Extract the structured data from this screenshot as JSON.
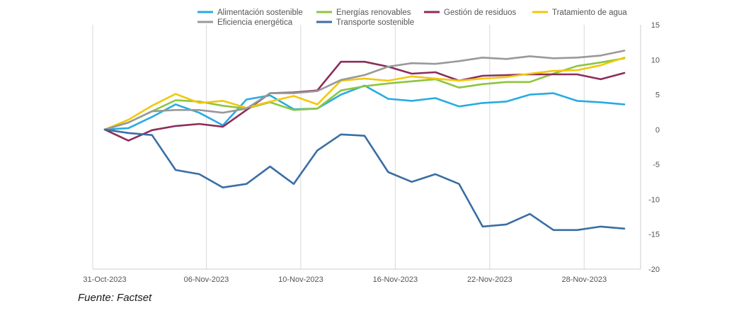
{
  "chart_data": {
    "type": "line",
    "title": "",
    "xlabel": "",
    "ylabel": "",
    "ylim": [
      -20,
      15
    ],
    "yticks": [
      15,
      10,
      5,
      0,
      -5,
      -10,
      -15,
      -20
    ],
    "x_tick_labels": [
      "31-Oct-2023",
      "06-Nov-2023",
      "10-Nov-2023",
      "16-Nov-2023",
      "22-Nov-2023",
      "28-Nov-2023"
    ],
    "x_tick_index": [
      0,
      4,
      8,
      12,
      16,
      20
    ],
    "point_count": 23,
    "legend_position": "top",
    "grid": "vertical",
    "series": [
      {
        "name": "Alimentación sostenible",
        "color": "#29abe2",
        "values": [
          0.0,
          0.2,
          1.8,
          3.6,
          2.4,
          0.6,
          4.3,
          4.9,
          2.9,
          3.0,
          5.0,
          6.3,
          4.4,
          4.1,
          4.5,
          3.3,
          3.8,
          4.0,
          5.0,
          5.2,
          4.1,
          3.9,
          3.6
        ]
      },
      {
        "name": "Energías renovables",
        "color": "#8cc63f",
        "values": [
          0.0,
          1.0,
          2.6,
          4.2,
          4.0,
          3.4,
          3.0,
          3.9,
          2.8,
          3.0,
          5.6,
          6.2,
          6.6,
          6.9,
          7.2,
          6.0,
          6.5,
          6.8,
          6.8,
          8.0,
          9.1,
          9.6,
          10.2
        ]
      },
      {
        "name": "Gestión de residuos",
        "color": "#8b2e5a",
        "values": [
          0.0,
          -1.6,
          -0.1,
          0.5,
          0.8,
          0.4,
          2.8,
          5.2,
          5.3,
          5.6,
          9.7,
          9.7,
          9.0,
          8.0,
          8.2,
          7.0,
          7.7,
          7.8,
          7.9,
          7.9,
          7.9,
          7.2,
          8.1
        ]
      },
      {
        "name": "Tratamiento de agua",
        "color": "#f2c80f",
        "values": [
          0.0,
          1.4,
          3.4,
          5.1,
          3.8,
          4.1,
          3.1,
          4.0,
          4.8,
          3.6,
          7.0,
          7.3,
          7.0,
          7.6,
          7.3,
          7.0,
          7.3,
          7.5,
          8.0,
          8.4,
          8.5,
          9.2,
          10.3
        ]
      },
      {
        "name": "Eficiencia energética",
        "color": "#999999",
        "values": [
          0.0,
          1.0,
          2.6,
          2.8,
          2.8,
          2.4,
          3.0,
          5.2,
          5.2,
          5.5,
          7.1,
          7.8,
          9.0,
          9.5,
          9.4,
          9.8,
          10.3,
          10.1,
          10.5,
          10.2,
          10.3,
          10.6,
          11.3
        ]
      },
      {
        "name": "Transporte sostenible",
        "color": "#3a6ea5",
        "values": [
          0.0,
          -0.5,
          -0.8,
          -5.8,
          -6.4,
          -8.3,
          -7.8,
          -5.3,
          -7.8,
          -3.0,
          -0.7,
          -0.9,
          -6.1,
          -7.5,
          -6.4,
          -7.8,
          -13.9,
          -13.6,
          -12.1,
          -14.4,
          -14.4,
          -13.9,
          -14.2
        ]
      }
    ]
  },
  "legend": {
    "items": [
      "Alimentación sostenible",
      "Energías renovables",
      "Gestión de residuos",
      "Tratamiento de agua",
      "Eficiencia energética",
      "Transporte sostenible"
    ]
  },
  "source": {
    "text": "Fuente: Factset"
  }
}
